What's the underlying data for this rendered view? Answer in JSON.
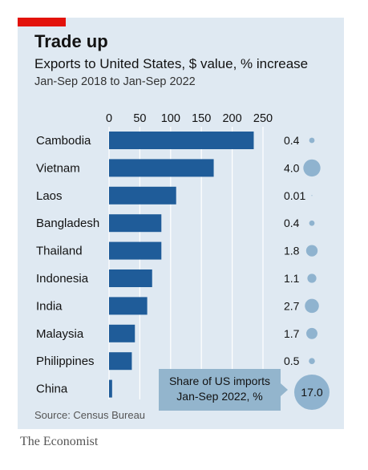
{
  "header": {
    "title": "Trade up",
    "subtitle": "Exports to United States, $ value, % increase",
    "date_range": "Jan-Sep 2018 to Jan-Sep 2022"
  },
  "source": "Source: Census Bureau",
  "brand": "The Economist",
  "tooltip": {
    "line1": "Share of US imports",
    "line2": "Jan-Sep 2022, %"
  },
  "colors": {
    "accent": "#e3120b",
    "bar": "#1f5c99",
    "background": "#dfe9f2",
    "bubble": "#8fb3cf",
    "label_box": "#93b5cd"
  },
  "chart_data": {
    "type": "bar",
    "orientation": "horizontal",
    "categories": [
      "Cambodia",
      "Vietnam",
      "Laos",
      "Bangladesh",
      "Thailand",
      "Indonesia",
      "India",
      "Malaysia",
      "Philippines",
      "China"
    ],
    "values": [
      235,
      170,
      109,
      85,
      85,
      70,
      62,
      42,
      37,
      5
    ],
    "xlim": [
      0,
      250
    ],
    "xticks": [
      "0",
      "50",
      "100",
      "150",
      "200",
      "250"
    ],
    "xtick_values": [
      0,
      50,
      100,
      150,
      200,
      250
    ],
    "grid": true,
    "share_labels": [
      "0.4",
      "4.0",
      "0.01",
      "0.4",
      "1.8",
      "1.1",
      "2.7",
      "1.7",
      "0.5",
      "17.0"
    ],
    "share_values": [
      0.4,
      4.0,
      0.01,
      0.4,
      1.8,
      1.1,
      2.7,
      1.7,
      0.5,
      17.0
    ]
  }
}
